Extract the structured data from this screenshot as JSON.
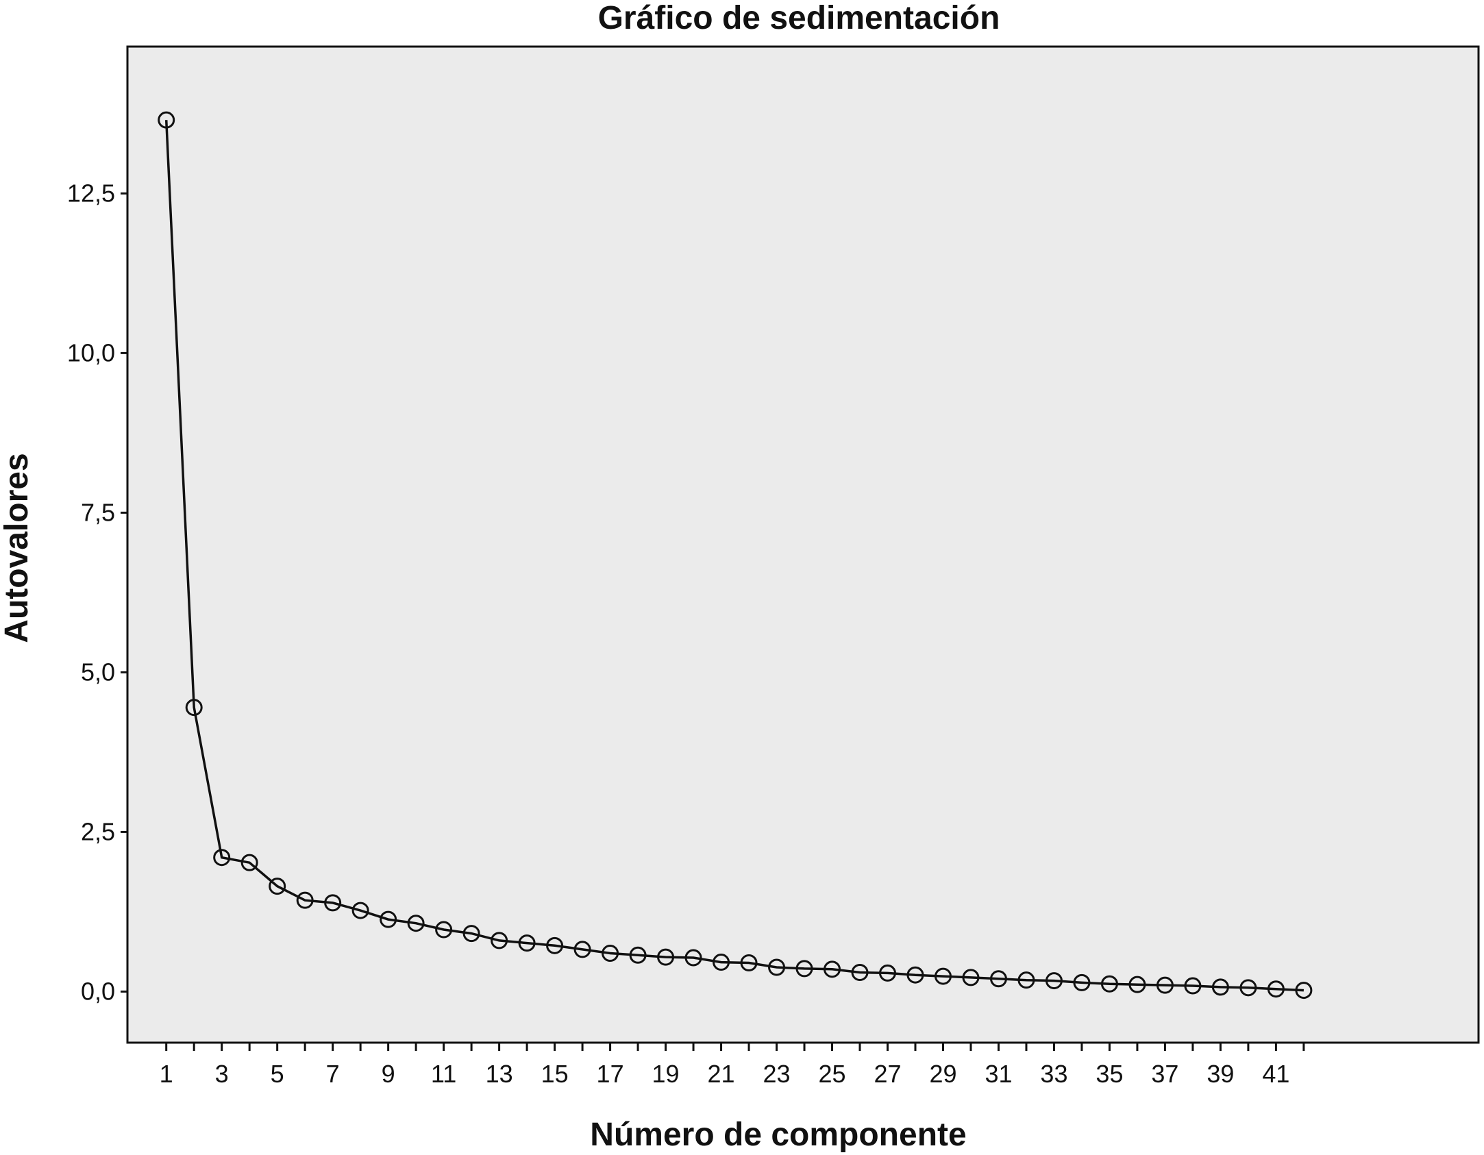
{
  "chart_data": {
    "type": "line",
    "title": "Gráfico de sedimentación",
    "xlabel": "Número de componente",
    "ylabel": "Autovalores",
    "x_tick_labels": [
      "1",
      "3",
      "5",
      "7",
      "9",
      "11",
      "13",
      "15",
      "17",
      "19",
      "21",
      "23",
      "25",
      "27",
      "29",
      "31",
      "33",
      "35",
      "37",
      "39",
      "41"
    ],
    "y_tick_labels": [
      "0,0",
      "2,5",
      "5,0",
      "7,5",
      "10,0",
      "12,5"
    ],
    "y_ticks": [
      0,
      2.5,
      5,
      7.5,
      10,
      12.5
    ],
    "xlim": [
      -0.4,
      48.3
    ],
    "ylim": [
      -0.8,
      14.8
    ],
    "grid": false,
    "plot_background": "#ebebeb",
    "line_color": "#111111",
    "marker": "open-circle",
    "series": [
      {
        "x": [
          1,
          2,
          3,
          4,
          5,
          6,
          7,
          8,
          9,
          10,
          11,
          12,
          13,
          14,
          15,
          16,
          17,
          18,
          19,
          20,
          21,
          22,
          23,
          24,
          25,
          26,
          27,
          28,
          29,
          30,
          31,
          32,
          33,
          34,
          35,
          36,
          37,
          38,
          39,
          40,
          41,
          42
        ],
        "values": [
          13.65,
          4.45,
          2.1,
          2.02,
          1.65,
          1.43,
          1.39,
          1.27,
          1.13,
          1.07,
          0.97,
          0.91,
          0.8,
          0.76,
          0.72,
          0.66,
          0.6,
          0.57,
          0.54,
          0.53,
          0.46,
          0.45,
          0.38,
          0.36,
          0.35,
          0.3,
          0.29,
          0.26,
          0.24,
          0.22,
          0.2,
          0.18,
          0.17,
          0.14,
          0.12,
          0.11,
          0.1,
          0.09,
          0.07,
          0.06,
          0.04,
          0.02
        ]
      }
    ]
  }
}
